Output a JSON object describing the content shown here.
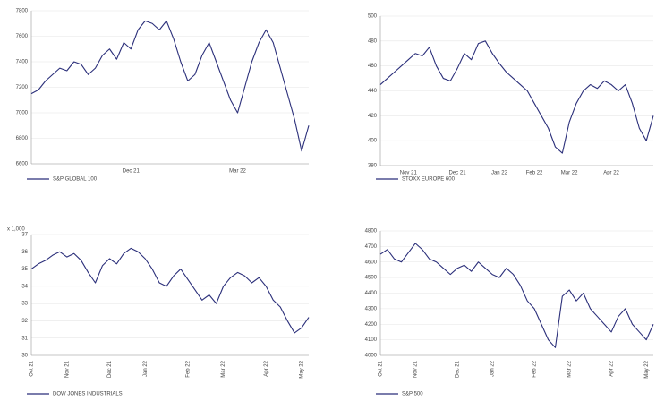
{
  "chart_data": [
    {
      "type": "line",
      "categories": [
        null,
        null,
        null,
        null,
        null,
        null,
        null,
        null,
        null,
        null,
        null,
        null,
        null,
        null,
        "Dec 21",
        null,
        null,
        null,
        null,
        null,
        null,
        null,
        null,
        null,
        null,
        null,
        null,
        null,
        null,
        "Mar 22",
        null,
        null,
        null,
        null,
        null,
        null,
        null,
        null,
        null,
        null
      ],
      "series": [
        {
          "name": "S&P GLOBAL 100",
          "color": "#2b2f7a",
          "values": [
            7150,
            7180,
            7250,
            7300,
            7350,
            7330,
            7400,
            7380,
            7300,
            7350,
            7450,
            7500,
            7420,
            7550,
            7500,
            7650,
            7720,
            7700,
            7650,
            7720,
            7580,
            7400,
            7250,
            7300,
            7450,
            7550,
            7400,
            7250,
            7100,
            7000,
            7200,
            7400,
            7550,
            7650,
            7550,
            7350,
            7150,
            6950,
            6700,
            6900
          ]
        }
      ],
      "ylim": [
        6600,
        7800
      ],
      "yticks": [
        6600,
        6800,
        7000,
        7200,
        7400,
        7600,
        7800
      ],
      "grid": true
    },
    {
      "type": "line",
      "categories": [
        null,
        null,
        null,
        null,
        "Nov 21",
        null,
        null,
        null,
        null,
        null,
        null,
        "Dec 21",
        null,
        null,
        null,
        null,
        null,
        "Jan 22",
        null,
        null,
        null,
        null,
        "Feb 22",
        null,
        null,
        null,
        null,
        "Mar 22",
        null,
        null,
        null,
        null,
        null,
        "Apr 22",
        null,
        null,
        null,
        null,
        null,
        null
      ],
      "series": [
        {
          "name": "STOXX EUROPE 600",
          "color": "#2b2f7a",
          "values": [
            445,
            450,
            455,
            460,
            465,
            470,
            468,
            475,
            460,
            450,
            448,
            458,
            470,
            465,
            478,
            480,
            470,
            462,
            455,
            450,
            445,
            440,
            430,
            420,
            410,
            395,
            390,
            415,
            430,
            440,
            445,
            442,
            448,
            445,
            440,
            445,
            430,
            410,
            400,
            420
          ]
        }
      ],
      "ylim": [
        380,
        500
      ],
      "yticks": [
        380,
        400,
        420,
        440,
        460,
        480,
        500
      ],
      "grid": true
    },
    {
      "type": "line",
      "y_unit": "x 1,000",
      "categories": [
        "Oct 21",
        null,
        null,
        null,
        null,
        "Nov 21",
        null,
        null,
        null,
        null,
        null,
        "Dec 21",
        null,
        null,
        null,
        null,
        "Jan 22",
        null,
        null,
        null,
        null,
        null,
        "Feb 22",
        null,
        null,
        null,
        null,
        "Mar 22",
        null,
        null,
        null,
        null,
        null,
        "Apr 22",
        null,
        null,
        null,
        null,
        "May 22",
        null
      ],
      "series": [
        {
          "name": "DOW JONES INDUSTRIALS",
          "color": "#2b2f7a",
          "values": [
            35.0,
            35.3,
            35.5,
            35.8,
            36.0,
            35.7,
            35.9,
            35.5,
            34.8,
            34.2,
            35.2,
            35.6,
            35.3,
            35.9,
            36.2,
            36.0,
            35.6,
            35.0,
            34.2,
            34.0,
            34.6,
            35.0,
            34.4,
            33.8,
            33.2,
            33.5,
            33.0,
            34.0,
            34.5,
            34.8,
            34.6,
            34.2,
            34.5,
            34.0,
            33.2,
            32.8,
            32.0,
            31.3,
            31.6,
            32.2
          ]
        }
      ],
      "ylim": [
        30,
        37
      ],
      "yticks": [
        30,
        31,
        32,
        33,
        34,
        35,
        36,
        37
      ],
      "grid": true
    },
    {
      "type": "line",
      "categories": [
        "Oct 21",
        null,
        null,
        null,
        null,
        "Nov 21",
        null,
        null,
        null,
        null,
        null,
        "Dec 21",
        null,
        null,
        null,
        null,
        "Jan 22",
        null,
        null,
        null,
        null,
        null,
        "Feb 22",
        null,
        null,
        null,
        null,
        "Mar 22",
        null,
        null,
        null,
        null,
        null,
        "Apr 22",
        null,
        null,
        null,
        null,
        "May 22",
        null
      ],
      "series": [
        {
          "name": "S&P 500",
          "color": "#2b2f7a",
          "values": [
            4650,
            4680,
            4620,
            4600,
            4660,
            4720,
            4680,
            4620,
            4600,
            4560,
            4520,
            4560,
            4580,
            4540,
            4600,
            4560,
            4520,
            4500,
            4560,
            4520,
            4450,
            4350,
            4300,
            4200,
            4100,
            4050,
            4380,
            4420,
            4350,
            4400,
            4300,
            4250,
            4200,
            4150,
            4250,
            4300,
            4200,
            4150,
            4100,
            4200
          ]
        }
      ],
      "ylim": [
        4000,
        4800
      ],
      "yticks": [
        4000,
        4100,
        4200,
        4300,
        4400,
        4500,
        4600,
        4700,
        4800
      ],
      "grid": true
    }
  ]
}
